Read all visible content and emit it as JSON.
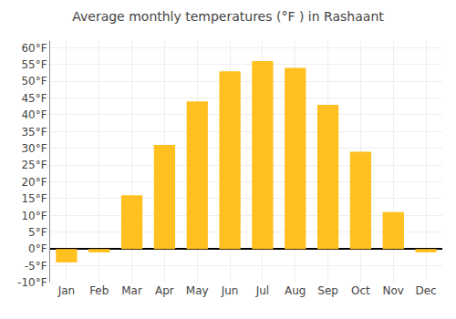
{
  "chart_data": {
    "type": "bar",
    "title": "Average monthly temperatures (°F ) in Rashaant",
    "categories": [
      "Jan",
      "Feb",
      "Mar",
      "Apr",
      "May",
      "Jun",
      "Jul",
      "Aug",
      "Sep",
      "Oct",
      "Nov",
      "Dec"
    ],
    "values": [
      -4,
      -1,
      16,
      31,
      44,
      53,
      56,
      54,
      43,
      29,
      11,
      -1
    ],
    "color": "#FFC020",
    "ylim": [
      -10,
      62
    ],
    "yticks": [
      {
        "value": -10,
        "label": "-10°F"
      },
      {
        "value": -5,
        "label": "-5°F"
      },
      {
        "value": 0,
        "label": "0°F"
      },
      {
        "value": 5,
        "label": "5°F"
      },
      {
        "value": 10,
        "label": "10°F"
      },
      {
        "value": 15,
        "label": "15°F"
      },
      {
        "value": 20,
        "label": "20°F"
      },
      {
        "value": 25,
        "label": "25°F"
      },
      {
        "value": 30,
        "label": "30°F"
      },
      {
        "value": 35,
        "label": "35°F"
      },
      {
        "value": 40,
        "label": "40°F"
      },
      {
        "value": 45,
        "label": "45°F"
      },
      {
        "value": 50,
        "label": "50°F"
      },
      {
        "value": 55,
        "label": "55°F"
      },
      {
        "value": 60,
        "label": "60°F"
      }
    ],
    "grid": true
  }
}
